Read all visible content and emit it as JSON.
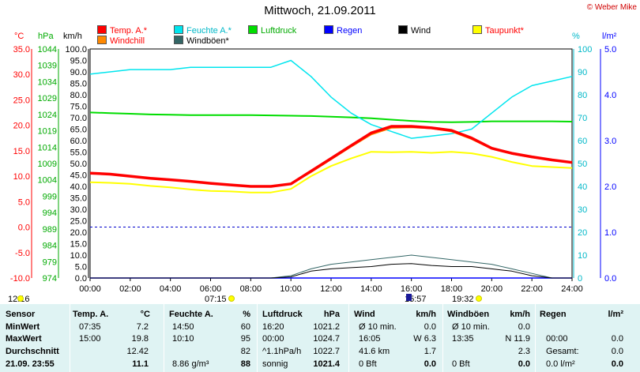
{
  "title": "Mittwoch, 21.09.2011",
  "copyright": "© Weber Mike",
  "legend": [
    {
      "label": "Temp. A.*",
      "color": "#ff0000",
      "textColor": "#ff0000"
    },
    {
      "label": "Feuchte A.*",
      "color": "#00e5ee",
      "textColor": "#00b8c8"
    },
    {
      "label": "Luftdruck",
      "color": "#00dd00",
      "textColor": "#00aa00"
    },
    {
      "label": "Regen",
      "color": "#0000ff",
      "textColor": "#0000ff"
    },
    {
      "label": "Wind",
      "color": "#000000",
      "textColor": "#000000"
    },
    {
      "label": "Taupunkt*",
      "color": "#ffff00",
      "textColor": "#ff0000"
    },
    {
      "label": "Windchill",
      "color": "#ff8800",
      "textColor": "#ff0000"
    },
    {
      "label": "Windböen*",
      "color": "#336666",
      "textColor": "#000000"
    }
  ],
  "axis_units": {
    "temp": "°C",
    "pressure": "hPa",
    "wind": "km/h",
    "humidity": "%",
    "rain": "l/m²"
  },
  "axis_ticks": {
    "temp": [
      "35.0",
      "30.0",
      "25.0",
      "20.0",
      "15.0",
      "10.0",
      "5.0",
      "0.0",
      "-5.0",
      "-10.0"
    ],
    "pressure": [
      "1044",
      "1039",
      "1034",
      "1029",
      "1024",
      "1019",
      "1014",
      "1009",
      "1004",
      "999",
      "994",
      "989",
      "984",
      "979",
      "974"
    ],
    "wind": [
      "100.0",
      "95.0",
      "90.0",
      "85.0",
      "80.0",
      "75.0",
      "70.0",
      "65.0",
      "60.0",
      "55.0",
      "50.0",
      "45.0",
      "40.0",
      "35.0",
      "30.0",
      "25.0",
      "20.0",
      "15.0",
      "10.0",
      "5.0",
      "0.0"
    ],
    "humidity": [
      "100",
      "90",
      "80",
      "70",
      "60",
      "50",
      "40",
      "30",
      "20",
      "10",
      "0"
    ],
    "rain": [
      "5.0",
      "4.0",
      "3.0",
      "2.0",
      "1.0",
      "0.0"
    ],
    "time": [
      "00:00",
      "02:00",
      "04:00",
      "06:00",
      "08:00",
      "10:00",
      "12:00",
      "14:00",
      "16:00",
      "18:00",
      "20:00",
      "22:00",
      "24:00"
    ]
  },
  "markers": [
    {
      "label": "12:16",
      "type": "moon"
    },
    {
      "label": "07:15",
      "type": "sun"
    },
    {
      "label": "15:57",
      "type": "flag"
    },
    {
      "label": "19:32",
      "type": "sun"
    }
  ],
  "chart_data": {
    "type": "line",
    "title": "Mittwoch, 21.09.2011",
    "x_label": "",
    "x_range": [
      "00:00",
      "24:00"
    ],
    "x": [
      "00:00",
      "01:00",
      "02:00",
      "03:00",
      "04:00",
      "05:00",
      "06:00",
      "07:00",
      "08:00",
      "09:00",
      "10:00",
      "11:00",
      "12:00",
      "13:00",
      "14:00",
      "15:00",
      "16:00",
      "17:00",
      "18:00",
      "19:00",
      "20:00",
      "21:00",
      "22:00",
      "23:00",
      "24:00"
    ],
    "series": [
      {
        "name": "Temp. A.*",
        "unit": "°C",
        "axis": "left",
        "values": [
          10.6,
          10.4,
          10.0,
          9.6,
          9.3,
          9.0,
          8.6,
          8.3,
          8.0,
          8.0,
          8.5,
          11.0,
          13.5,
          16.0,
          18.5,
          19.8,
          19.8,
          19.5,
          19.0,
          17.5,
          15.5,
          14.5,
          13.8,
          13.2,
          12.7
        ]
      },
      {
        "name": "Feuchte A.*",
        "unit": "%",
        "axis": "right",
        "values": [
          89,
          90,
          91,
          91,
          91,
          92,
          92,
          92,
          92,
          92,
          95,
          88,
          79,
          72,
          67,
          64,
          61,
          62,
          63,
          65,
          72,
          79,
          84,
          86,
          88
        ]
      },
      {
        "name": "Luftdruck",
        "unit": "hPa",
        "axis": "left",
        "values": [
          1024.6,
          1024.4,
          1024.2,
          1024.0,
          1023.9,
          1023.8,
          1023.8,
          1023.8,
          1023.8,
          1023.7,
          1023.6,
          1023.5,
          1023.3,
          1023.1,
          1022.8,
          1022.4,
          1022.0,
          1021.7,
          1021.6,
          1021.7,
          1021.9,
          1021.9,
          1021.9,
          1021.9,
          1021.8
        ]
      },
      {
        "name": "Taupunkt*",
        "unit": "°C",
        "axis": "left",
        "values": [
          8.8,
          8.7,
          8.5,
          8.1,
          7.8,
          7.4,
          7.1,
          7.0,
          6.8,
          6.8,
          7.5,
          10.0,
          12.0,
          13.5,
          14.8,
          14.7,
          14.8,
          14.6,
          14.8,
          14.5,
          13.8,
          12.8,
          12.0,
          11.8,
          11.6
        ]
      },
      {
        "name": "Windchill",
        "unit": "°C",
        "axis": "left",
        "values": [
          10.6,
          10.4,
          10.0,
          9.6,
          9.3,
          9.0,
          8.6,
          8.3,
          8.0,
          8.0,
          8.5,
          10.8,
          13.3,
          15.8,
          18.2,
          19.5,
          19.6,
          19.4,
          18.8,
          17.3,
          15.4,
          14.4,
          13.7,
          13.2,
          12.7
        ]
      },
      {
        "name": "Wind",
        "unit": "km/h",
        "axis": "left",
        "values": [
          0,
          0,
          0,
          0,
          0,
          0,
          0,
          0,
          0,
          0,
          0.5,
          3,
          4,
          4.5,
          5,
          6,
          6.3,
          5.5,
          5,
          5,
          4,
          3,
          1,
          0,
          0
        ]
      },
      {
        "name": "Windböen*",
        "unit": "km/h",
        "axis": "left",
        "values": [
          0,
          0,
          0,
          0,
          0,
          0,
          0,
          0,
          0,
          0,
          1,
          4,
          6,
          7,
          8,
          9,
          10,
          9,
          8,
          7,
          6,
          4,
          2,
          0,
          0
        ]
      },
      {
        "name": "Regen",
        "unit": "l/m²",
        "axis": "right",
        "values": [
          0,
          0,
          0,
          0,
          0,
          0,
          0,
          0,
          0,
          0,
          0,
          0,
          0,
          0,
          0,
          0,
          0,
          0,
          0,
          0,
          0,
          0,
          0,
          0,
          0
        ]
      }
    ],
    "y_ranges": {
      "temp": [
        -10,
        35
      ],
      "pressure": [
        974,
        1044
      ],
      "wind": [
        0,
        100
      ],
      "humidity": [
        0,
        100
      ],
      "rain": [
        0,
        5
      ]
    },
    "reference_line": {
      "axis": "temp",
      "value": 0
    },
    "grid": false,
    "legend_placement": "top"
  },
  "table": {
    "headers": {
      "sensor": "Sensor",
      "temp": "Temp. A.",
      "temp_unit": "°C",
      "hum": "Feuchte A.",
      "hum_unit": "%",
      "press": "Luftdruck",
      "press_unit": "hPa",
      "wind": "Wind",
      "wind_unit": "km/h",
      "gust": "Windböen",
      "gust_unit": "km/h",
      "rain": "Regen",
      "rain_unit": "l/m²"
    },
    "rows": [
      {
        "label": "MinWert",
        "temp_time": "07:35",
        "temp": "7.2",
        "hum_time": "14:50",
        "hum": "60",
        "press_time": "16:20",
        "press": "1021.2",
        "wind_desc": "Ø 10 min.",
        "wind": "0.0",
        "gust_desc": "Ø 10 min.",
        "gust": "0.0",
        "rain_desc": "",
        "rain": ""
      },
      {
        "label": "MaxWert",
        "temp_time": "15:00",
        "temp": "19.8",
        "hum_time": "10:10",
        "hum": "95",
        "press_time": "00:00",
        "press": "1024.7",
        "wind_desc": "16:05",
        "wind": "W 6.3",
        "gust_desc": "13:35",
        "gust": "N 11.9",
        "rain_desc": "00:00",
        "rain": "0.0"
      },
      {
        "label": "Durchschnitt",
        "temp_time": "",
        "temp": "12.42",
        "hum_time": "",
        "hum": "82",
        "press_time": "^1.1hPa/h",
        "press": "1022.7",
        "wind_desc": "41.6 km",
        "wind": "1.7",
        "gust_desc": "",
        "gust": "2.3",
        "rain_desc": "Gesamt:",
        "rain": "0.0"
      },
      {
        "label": "21.09.  23:55",
        "temp_time": "",
        "temp": "11.1",
        "hum_time": "8.86 g/m³",
        "hum": "88",
        "press_time": "sonnig",
        "press": "1021.4",
        "wind_desc": "0 Bft",
        "wind": "0.0",
        "gust_desc": "0 Bft",
        "gust": "0.0",
        "rain_desc": "0.0 l/m²",
        "rain": "0.0"
      }
    ]
  }
}
